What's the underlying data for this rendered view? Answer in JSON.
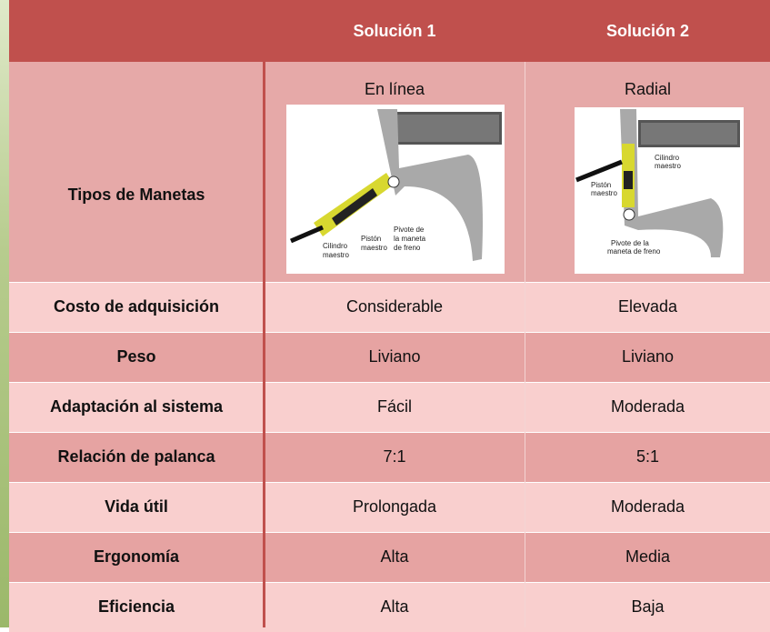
{
  "header": {
    "solutions": [
      "Solución 1",
      "Solución 2"
    ]
  },
  "type_row": {
    "label": "Tipos de Manetas",
    "options": [
      {
        "name": "En línea",
        "diagram_labels": [
          [
            "Pistón",
            "maestro"
          ],
          [
            "Cilindro",
            "maestro"
          ],
          [
            "Pivote de",
            "la maneta",
            "de freno"
          ]
        ]
      },
      {
        "name": "Radial",
        "diagram_labels": [
          [
            "Cilindro",
            "maestro"
          ],
          [
            "Pistón",
            "maestro"
          ],
          [
            "Pivote de la",
            "maneta de freno"
          ]
        ]
      }
    ]
  },
  "rows": [
    [
      "Costo de adquisición",
      "Considerable",
      "Elevada"
    ],
    [
      "Peso",
      "Liviano",
      "Liviano"
    ],
    [
      "Adaptación al sistema",
      "Fácil",
      "Moderada"
    ],
    [
      "Relación de palanca",
      "7:1",
      "5:1"
    ],
    [
      "Vida útil",
      "Prolongada",
      "Moderada"
    ],
    [
      "Ergonomía",
      "Alta",
      "Media"
    ],
    [
      "Eficiencia",
      "Alta",
      "Baja"
    ]
  ]
}
